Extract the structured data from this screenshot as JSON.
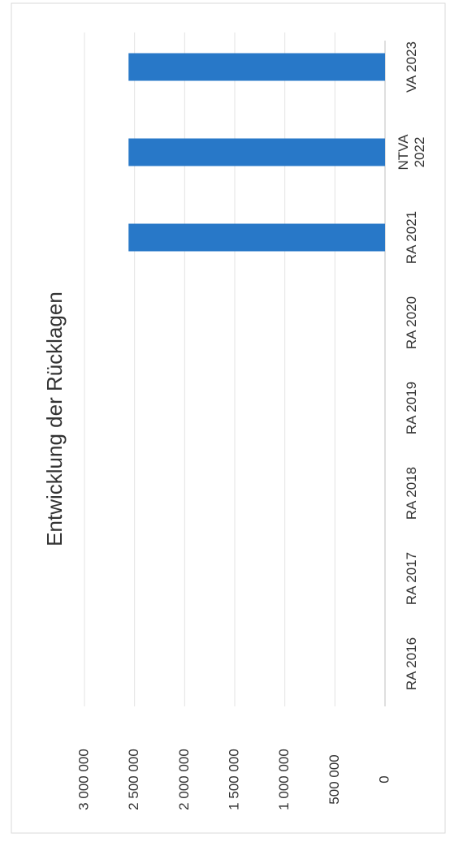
{
  "chart_data": {
    "type": "bar",
    "title": "Entwicklung der Rücklagen",
    "categories": [
      [
        "RA 2016"
      ],
      [
        "RA 2017"
      ],
      [
        "RA 2018"
      ],
      [
        "RA 2019"
      ],
      [
        "RA 2020"
      ],
      [
        "RA 2021"
      ],
      [
        "NTVA",
        "2022"
      ],
      [
        "VA 2023"
      ]
    ],
    "values": [
      null,
      null,
      null,
      null,
      null,
      2560000,
      2560000,
      2560000
    ],
    "ylim": [
      0,
      3000000
    ],
    "yticks": [
      0,
      500000,
      1000000,
      1500000,
      2000000,
      2500000,
      3000000
    ],
    "ytick_labels": [
      "0",
      "500 000",
      "1 000 000",
      "1 500 000",
      "2 000 000",
      "2 500 000",
      "3 000 000"
    ],
    "bar_color": "#2878c8",
    "grid": true,
    "orientation_note": "page rotated 90° counter-clockwise",
    "xlabel": "",
    "ylabel": ""
  }
}
